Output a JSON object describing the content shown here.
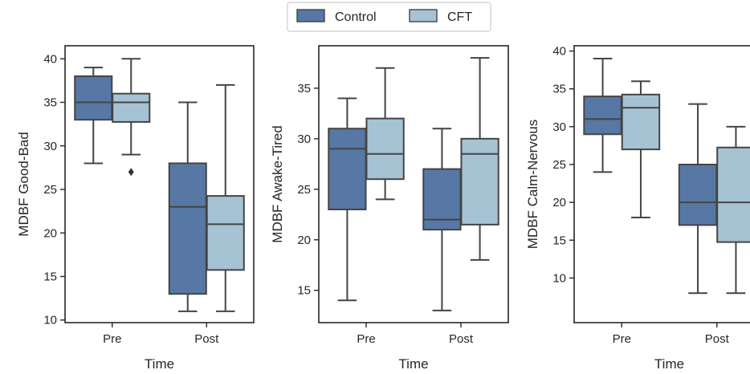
{
  "legend": {
    "entries": [
      {
        "label": "Control",
        "color": "#5778a4"
      },
      {
        "label": "CFT",
        "color": "#a6c3d4"
      }
    ]
  },
  "chart_data": [
    {
      "type": "box",
      "xlabel": "Time",
      "ylabel": "MDBF Good-Bad",
      "categories": [
        "Pre",
        "Post"
      ],
      "ylim": [
        9.7,
        41.5
      ],
      "yticks": [
        10,
        15,
        20,
        25,
        30,
        35,
        40
      ],
      "series": [
        {
          "name": "Control",
          "boxes": [
            {
              "whislo": 28,
              "q1": 33,
              "med": 35,
              "q3": 38,
              "whishi": 39,
              "fliers": []
            },
            {
              "whislo": 11,
              "q1": 13,
              "med": 23,
              "q3": 28,
              "whishi": 35,
              "fliers": []
            }
          ]
        },
        {
          "name": "CFT",
          "boxes": [
            {
              "whislo": 29,
              "q1": 32.75,
              "med": 35,
              "q3": 36,
              "whishi": 40,
              "fliers": [
                27
              ]
            },
            {
              "whislo": 11,
              "q1": 15.75,
              "med": 21,
              "q3": 24.25,
              "whishi": 37,
              "fliers": []
            }
          ]
        }
      ]
    },
    {
      "type": "box",
      "xlabel": "Time",
      "ylabel": "MDBF Awake-Tired",
      "categories": [
        "Pre",
        "Post"
      ],
      "ylim": [
        11.8,
        39.2
      ],
      "yticks": [
        15,
        20,
        25,
        30,
        35
      ],
      "series": [
        {
          "name": "Control",
          "boxes": [
            {
              "whislo": 14,
              "q1": 23,
              "med": 29,
              "q3": 31,
              "whishi": 34,
              "fliers": []
            },
            {
              "whislo": 13,
              "q1": 21,
              "med": 22,
              "q3": 27,
              "whishi": 31,
              "fliers": []
            }
          ]
        },
        {
          "name": "CFT",
          "boxes": [
            {
              "whislo": 24,
              "q1": 26,
              "med": 28.5,
              "q3": 32,
              "whishi": 37,
              "fliers": []
            },
            {
              "whislo": 18,
              "q1": 21.5,
              "med": 28.5,
              "q3": 30,
              "whishi": 38,
              "fliers": []
            }
          ]
        }
      ]
    },
    {
      "type": "box",
      "xlabel": "Time",
      "ylabel": "MDBF Calm-Nervous",
      "categories": [
        "Pre",
        "Post"
      ],
      "ylim": [
        4.1,
        40.7
      ],
      "yticks": [
        10,
        15,
        20,
        25,
        30,
        35,
        40
      ],
      "series": [
        {
          "name": "Control",
          "boxes": [
            {
              "whislo": 24,
              "q1": 29,
              "med": 31,
              "q3": 34,
              "whishi": 39,
              "fliers": []
            },
            {
              "whislo": 8,
              "q1": 17,
              "med": 20,
              "q3": 25,
              "whishi": 33,
              "fliers": []
            }
          ]
        },
        {
          "name": "CFT",
          "boxes": [
            {
              "whislo": 18,
              "q1": 27,
              "med": 32.5,
              "q3": 34.25,
              "whishi": 36,
              "fliers": []
            },
            {
              "whislo": 8,
              "q1": 14.75,
              "med": 20,
              "q3": 27.25,
              "whishi": 30,
              "fliers": []
            }
          ]
        }
      ]
    }
  ]
}
